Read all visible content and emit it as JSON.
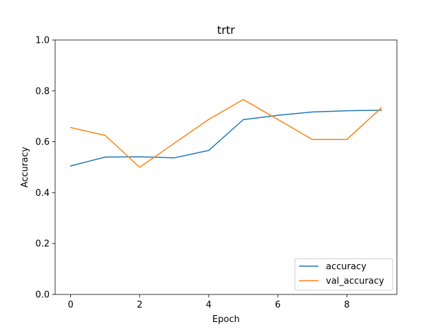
{
  "chart_data": {
    "type": "line",
    "title": "trtr",
    "xlabel": "Epoch",
    "ylabel": "Accuracy",
    "x": [
      0,
      1,
      2,
      3,
      4,
      5,
      6,
      7,
      8,
      9
    ],
    "xlim": [
      -0.45,
      9.45
    ],
    "ylim": [
      0.0,
      1.0
    ],
    "xticks": [
      "0",
      "2",
      "4",
      "6",
      "8"
    ],
    "yticks": [
      "0.0",
      "0.2",
      "0.4",
      "0.6",
      "0.8",
      "1.0"
    ],
    "grid": false,
    "legend_position": "lower right",
    "series": [
      {
        "name": "accuracy",
        "color": "#1f77b4",
        "values": [
          0.505,
          0.54,
          0.541,
          0.537,
          0.566,
          0.687,
          0.704,
          0.717,
          0.722,
          0.724
        ]
      },
      {
        "name": "val_accuracy",
        "color": "#ff7f0e",
        "values": [
          0.656,
          0.625,
          0.5,
          0.594,
          0.688,
          0.766,
          0.688,
          0.609,
          0.609,
          0.734
        ]
      }
    ]
  }
}
